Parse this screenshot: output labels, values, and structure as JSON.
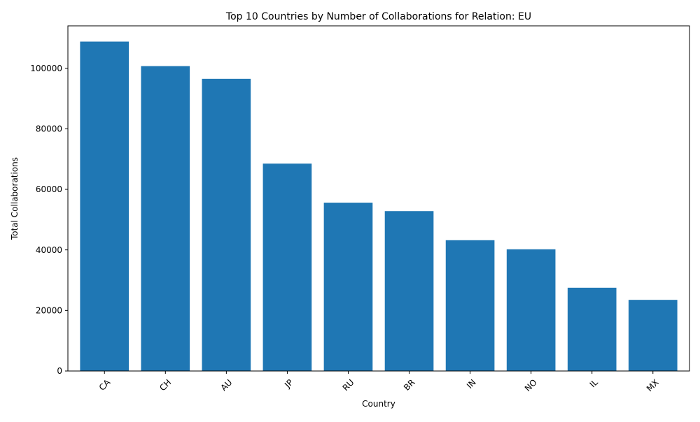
{
  "chart_data": {
    "type": "bar",
    "title": "Top 10 Countries by Number of Collaborations for Relation: EU",
    "xlabel": "Country",
    "ylabel": "Total Collaborations",
    "categories": [
      "CA",
      "CH",
      "AU",
      "JP",
      "RU",
      "BR",
      "IN",
      "NO",
      "IL",
      "MX"
    ],
    "values": [
      108800,
      100700,
      96500,
      68500,
      55600,
      52800,
      43200,
      40200,
      27500,
      23500
    ],
    "ylim": [
      0,
      114000
    ],
    "yticks": [
      0,
      20000,
      40000,
      60000,
      80000,
      100000
    ],
    "ytick_labels": [
      "0",
      "20000",
      "40000",
      "60000",
      "80000",
      "100000"
    ],
    "bar_color": "#1f77b4",
    "x_tick_rotation_deg": 45,
    "grid": false,
    "legend": false
  }
}
